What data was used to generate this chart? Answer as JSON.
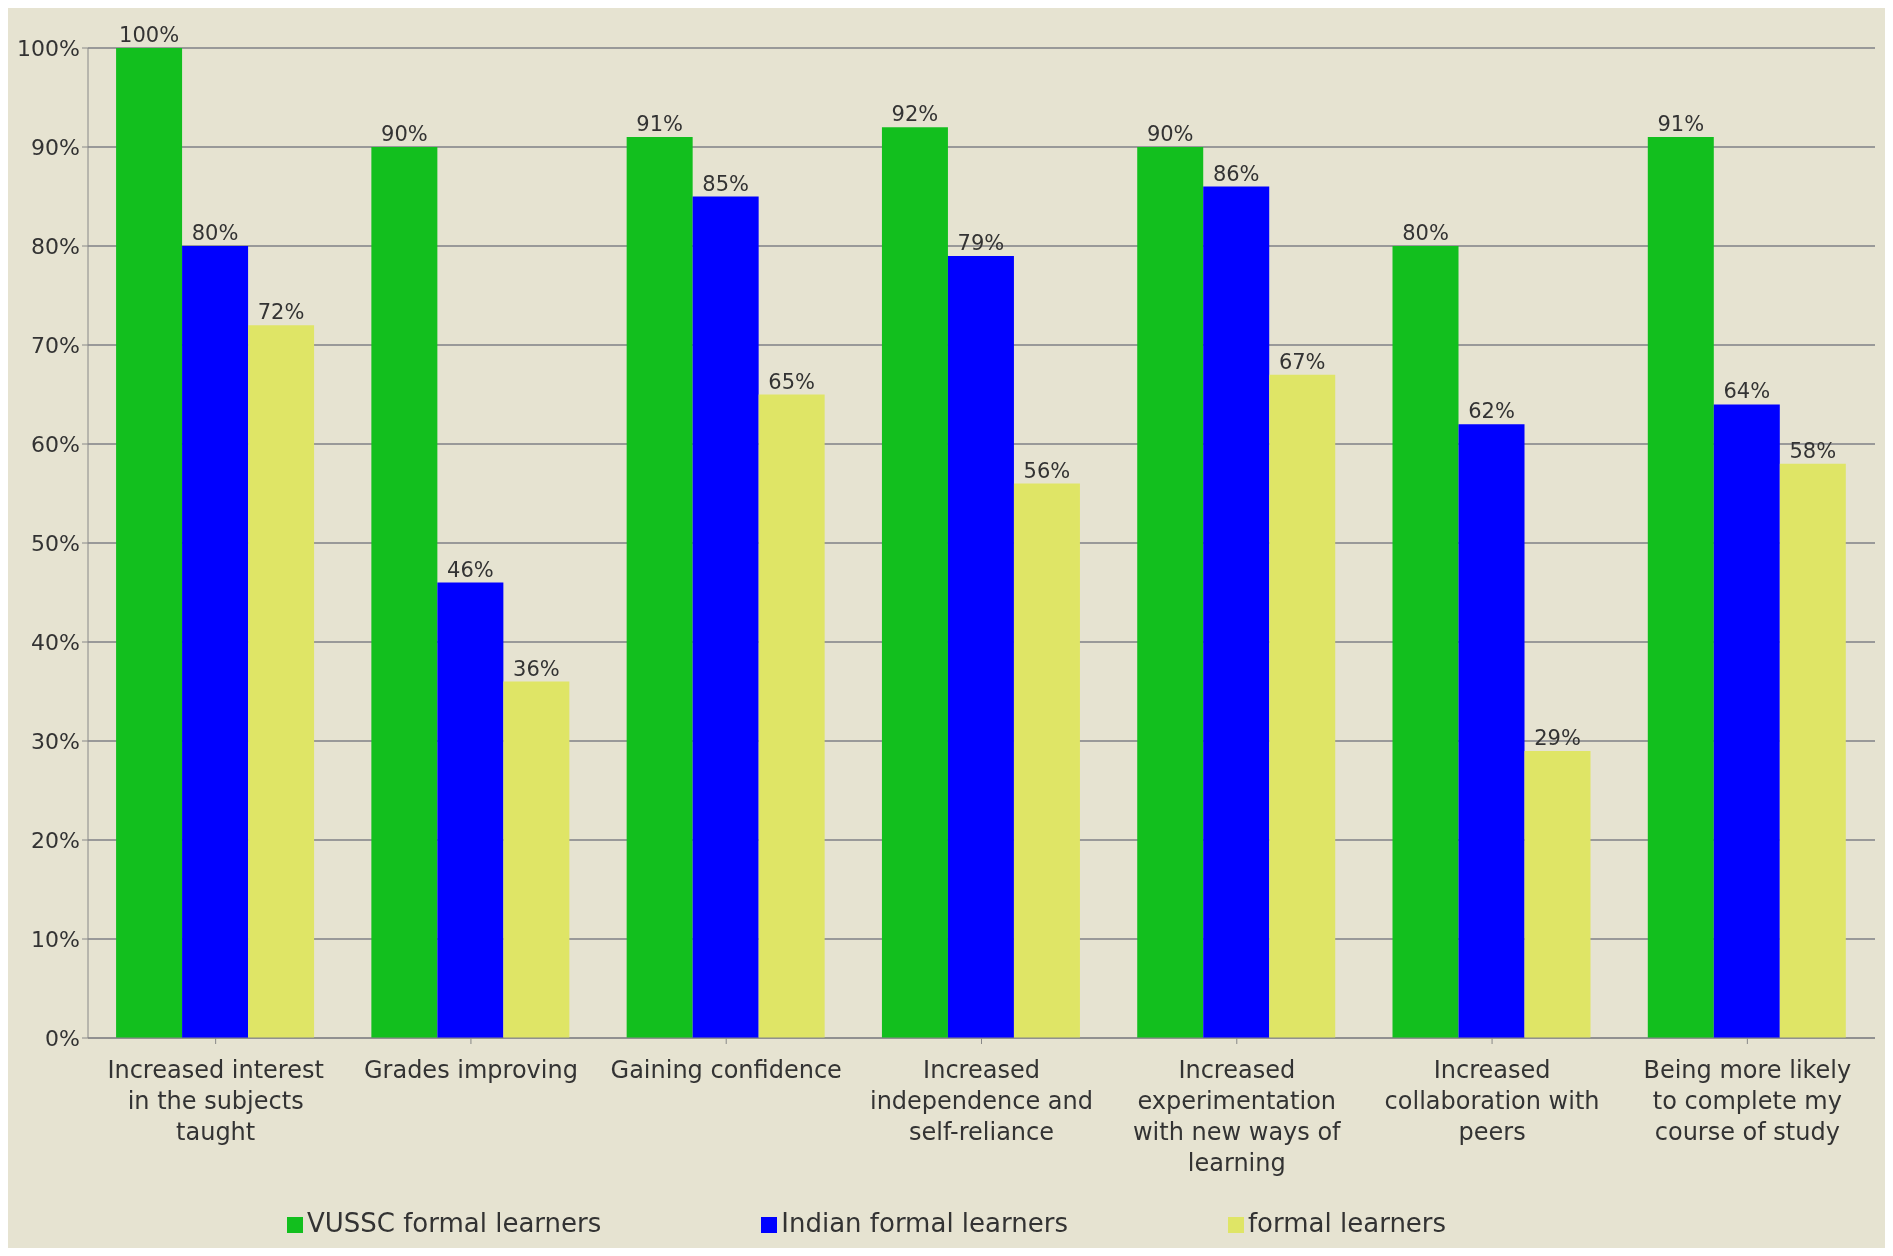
{
  "chart_data": {
    "type": "bar",
    "categories": [
      "Increased interest in the subjects taught",
      "Grades improving",
      "Gaining confidence",
      "Increased independence and self-reliance",
      "Increased experimentation with new ways of learning",
      "Increased collaboration with peers",
      "Being more likely to complete my course of study"
    ],
    "series": [
      {
        "name": "VUSSC formal learners",
        "color": "#12bf1e",
        "values": [
          100,
          90,
          91,
          92,
          90,
          80,
          91
        ],
        "value_labels": [
          "100%",
          "90%",
          "91%",
          "92%",
          "90%",
          "80%",
          "91%"
        ]
      },
      {
        "name": "Indian formal learners",
        "color": "#0000ff",
        "values": [
          80,
          46,
          85,
          79,
          86,
          62,
          64
        ],
        "value_labels": [
          "80%",
          "46%",
          "85%",
          "79%",
          "86%",
          "62%",
          "64%"
        ]
      },
      {
        "name": "formal learners",
        "color": "#dfe566",
        "values": [
          72,
          36,
          65,
          56,
          67,
          29,
          58
        ],
        "value_labels": [
          "72%",
          "36%",
          "65%",
          "56%",
          "67%",
          "29%",
          "58%"
        ]
      }
    ],
    "ylim": [
      0,
      100
    ],
    "yticks": [
      {
        "value": 0,
        "label": "0%"
      },
      {
        "value": 10,
        "label": "10%"
      },
      {
        "value": 20,
        "label": "20%"
      },
      {
        "value": 30,
        "label": "30%"
      },
      {
        "value": 40,
        "label": "40%"
      },
      {
        "value": 50,
        "label": "50%"
      },
      {
        "value": 60,
        "label": "60%"
      },
      {
        "value": 70,
        "label": "70%"
      },
      {
        "value": 80,
        "label": "80%"
      },
      {
        "value": 90,
        "label": "90%"
      },
      {
        "value": 100,
        "label": "100%"
      }
    ],
    "grid": "y",
    "legend": "bottom"
  }
}
